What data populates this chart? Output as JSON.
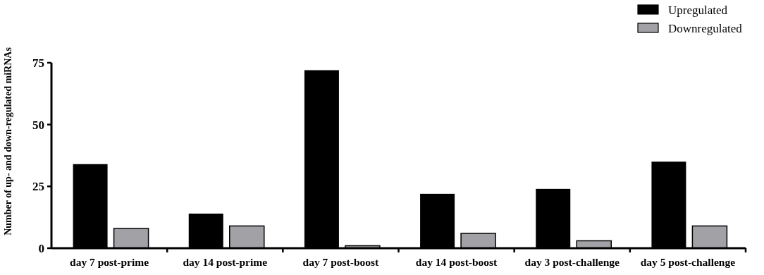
{
  "chart_data": {
    "type": "bar",
    "ylabel": "Number of up- and down-regulated miRNAs",
    "categories": [
      "day 7 post-prime",
      "day 14 post-prime",
      "day 7 post-boost",
      "day 14 post-boost",
      "day 3 post-challenge",
      "day 5 post-challenge"
    ],
    "series": [
      {
        "name": "Upregulated",
        "color": "#000000",
        "values": [
          34,
          14,
          72,
          22,
          24,
          35
        ]
      },
      {
        "name": "Downregulated",
        "color": "#a2a2a6",
        "values": [
          8,
          9,
          1,
          6,
          3,
          9
        ]
      }
    ],
    "ylim": [
      0,
      75
    ],
    "yticks": [
      0,
      25,
      50,
      75
    ],
    "legend": "top right"
  }
}
